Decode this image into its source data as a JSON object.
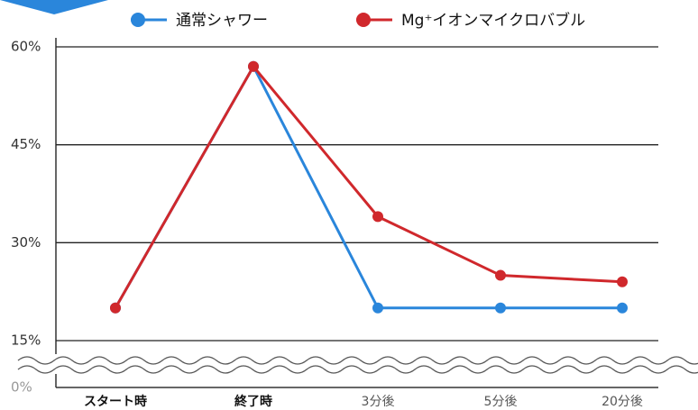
{
  "chart_data": {
    "type": "line",
    "categories": [
      "スタート時",
      "終了時",
      "3分後",
      "5分後",
      "20分後"
    ],
    "series": [
      {
        "name": "通常シャワー",
        "color": "#2a86db",
        "values": [
          20,
          57,
          20,
          20,
          20
        ]
      },
      {
        "name": "Mg⁺イオンマイクロバブル",
        "color": "#d0282c",
        "values": [
          20,
          57,
          34,
          25,
          24
        ]
      }
    ],
    "ylim": [
      0,
      60
    ],
    "yticks": [
      {
        "value": 0,
        "label": "0%"
      },
      {
        "value": 15,
        "label": "15%"
      },
      {
        "value": 30,
        "label": "30%"
      },
      {
        "value": 45,
        "label": "45%"
      },
      {
        "value": 60,
        "label": "60%"
      }
    ],
    "axis_break": [
      0,
      15
    ],
    "grid": true,
    "legend": "top"
  }
}
